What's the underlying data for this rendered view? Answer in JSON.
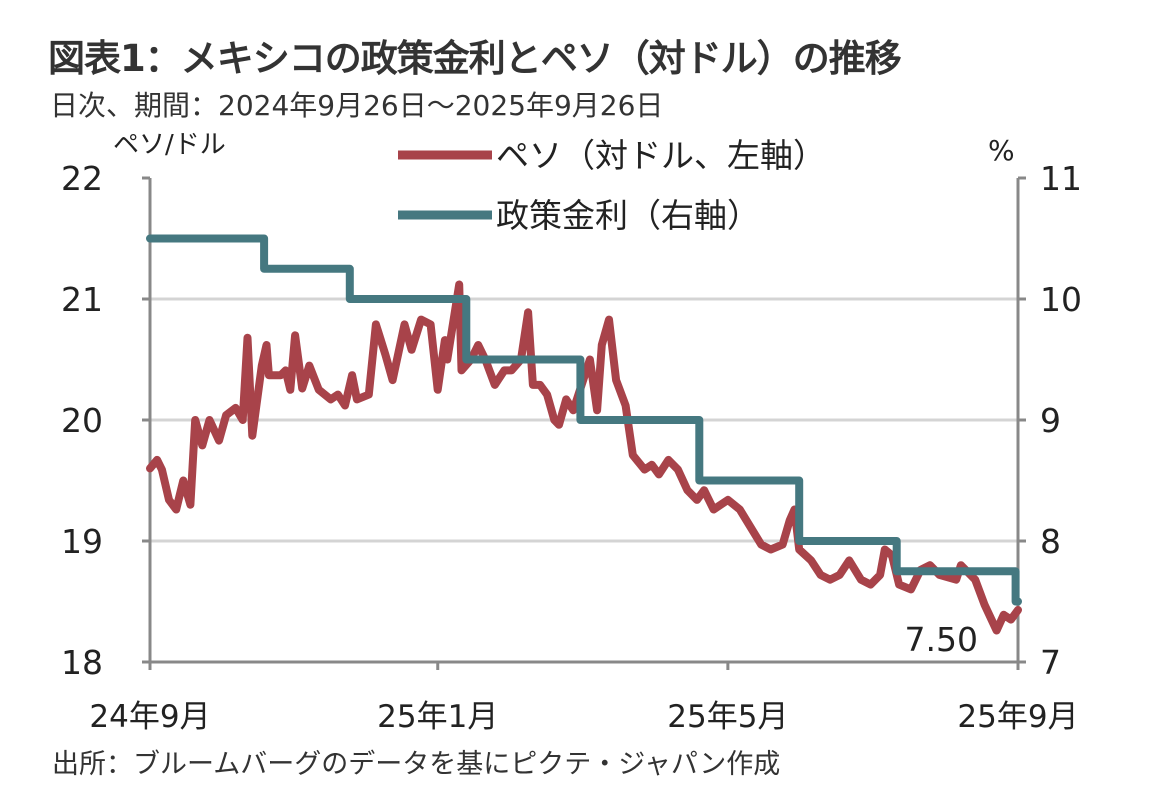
{
  "title": "図表1：メキシコの政策金利とペソ（対ドル）の推移",
  "subtitle": "日次、期間：2024年9月26日～2025年9月26日",
  "source": "出所：ブルームバーグのデータを基にピクテ・ジャパン作成",
  "chart_data": {
    "type": "line",
    "title": "図表1：メキシコの政策金利とペソ（対ドル）の推移",
    "x_unit": "days since 2024-09-26",
    "x_range": [
      0,
      365
    ],
    "xticks": [
      {
        "day": 0,
        "label": "24年9月"
      },
      {
        "day": 121,
        "label": "25年1月"
      },
      {
        "day": 243,
        "label": "25年5月"
      },
      {
        "day": 365,
        "label": "25年9月"
      }
    ],
    "left_axis": {
      "label": "ペソ/ドル",
      "ylim": [
        18,
        22
      ],
      "ticks": [
        "18",
        "19",
        "20",
        "21",
        "22"
      ]
    },
    "right_axis": {
      "label": "%",
      "ylim": [
        7,
        11
      ],
      "ticks": [
        "7",
        "8",
        "9",
        "10",
        "11"
      ]
    },
    "grid": true,
    "legend_position": "top-center",
    "annotation": "7.50",
    "series": [
      {
        "name": "ペソ（対ドル、左軸）",
        "axis": "left",
        "color": "#a8434a",
        "points": [
          [
            0,
            19.6
          ],
          [
            3,
            19.67
          ],
          [
            5,
            19.59
          ],
          [
            8,
            19.34
          ],
          [
            11,
            19.26
          ],
          [
            14,
            19.5
          ],
          [
            17,
            19.3
          ],
          [
            19,
            20.0
          ],
          [
            22,
            19.79
          ],
          [
            25,
            20.0
          ],
          [
            29,
            19.83
          ],
          [
            32,
            20.04
          ],
          [
            36,
            20.1
          ],
          [
            39,
            20.0
          ],
          [
            41,
            20.68
          ],
          [
            43,
            19.87
          ],
          [
            47,
            20.45
          ],
          [
            49,
            20.62
          ],
          [
            50,
            20.37
          ],
          [
            55,
            20.37
          ],
          [
            57,
            20.41
          ],
          [
            59,
            20.25
          ],
          [
            61,
            20.7
          ],
          [
            64,
            20.26
          ],
          [
            67,
            20.45
          ],
          [
            71,
            20.25
          ],
          [
            76,
            20.17
          ],
          [
            79,
            20.21
          ],
          [
            82,
            20.12
          ],
          [
            85,
            20.37
          ],
          [
            87,
            20.17
          ],
          [
            92,
            20.21
          ],
          [
            95,
            20.79
          ],
          [
            99,
            20.54
          ],
          [
            102,
            20.33
          ],
          [
            107,
            20.79
          ],
          [
            110,
            20.58
          ],
          [
            114,
            20.83
          ],
          [
            118,
            20.79
          ],
          [
            121,
            20.25
          ],
          [
            124,
            20.66
          ],
          [
            125,
            20.5
          ],
          [
            130,
            21.12
          ],
          [
            131,
            20.41
          ],
          [
            135,
            20.5
          ],
          [
            138,
            20.62
          ],
          [
            141,
            20.5
          ],
          [
            145,
            20.29
          ],
          [
            149,
            20.41
          ],
          [
            152,
            20.41
          ],
          [
            156,
            20.5
          ],
          [
            159,
            20.89
          ],
          [
            161,
            20.29
          ],
          [
            164,
            20.29
          ],
          [
            167,
            20.21
          ],
          [
            170,
            20.0
          ],
          [
            172,
            19.96
          ],
          [
            175,
            20.17
          ],
          [
            178,
            20.08
          ],
          [
            185,
            20.5
          ],
          [
            188,
            20.08
          ],
          [
            190,
            20.62
          ],
          [
            193,
            20.83
          ],
          [
            196,
            20.33
          ],
          [
            200,
            20.12
          ],
          [
            203,
            19.71
          ],
          [
            208,
            19.59
          ],
          [
            211,
            19.63
          ],
          [
            214,
            19.55
          ],
          [
            218,
            19.67
          ],
          [
            222,
            19.59
          ],
          [
            226,
            19.42
          ],
          [
            230,
            19.34
          ],
          [
            233,
            19.42
          ],
          [
            237,
            19.26
          ],
          [
            243,
            19.34
          ],
          [
            248,
            19.26
          ],
          [
            257,
            18.97
          ],
          [
            261,
            18.93
          ],
          [
            266,
            18.97
          ],
          [
            269,
            19.17
          ],
          [
            271,
            19.26
          ],
          [
            273,
            18.93
          ],
          [
            278,
            18.84
          ],
          [
            282,
            18.72
          ],
          [
            286,
            18.68
          ],
          [
            290,
            18.72
          ],
          [
            294,
            18.84
          ],
          [
            299,
            18.68
          ],
          [
            303,
            18.64
          ],
          [
            307,
            18.72
          ],
          [
            309,
            18.93
          ],
          [
            312,
            18.88
          ],
          [
            315,
            18.64
          ],
          [
            320,
            18.6
          ],
          [
            324,
            18.76
          ],
          [
            328,
            18.8
          ],
          [
            332,
            18.72
          ],
          [
            339,
            18.68
          ],
          [
            341,
            18.8
          ],
          [
            347,
            18.68
          ],
          [
            351,
            18.47
          ],
          [
            356,
            18.26
          ],
          [
            359,
            18.39
          ],
          [
            362,
            18.35
          ],
          [
            365,
            18.43
          ]
        ]
      },
      {
        "name": "政策金利（右軸）",
        "axis": "right",
        "color": "#457880",
        "points": [
          [
            0,
            10.5
          ],
          [
            48,
            10.5
          ],
          [
            48,
            10.25
          ],
          [
            84,
            10.25
          ],
          [
            84,
            10.0
          ],
          [
            133,
            10.0
          ],
          [
            133,
            9.5
          ],
          [
            181,
            9.5
          ],
          [
            181,
            9.0
          ],
          [
            231,
            9.0
          ],
          [
            231,
            8.5
          ],
          [
            273,
            8.5
          ],
          [
            273,
            8.0
          ],
          [
            314,
            8.0
          ],
          [
            314,
            7.75
          ],
          [
            364,
            7.75
          ],
          [
            364,
            7.5
          ],
          [
            365,
            7.5
          ]
        ]
      }
    ]
  }
}
